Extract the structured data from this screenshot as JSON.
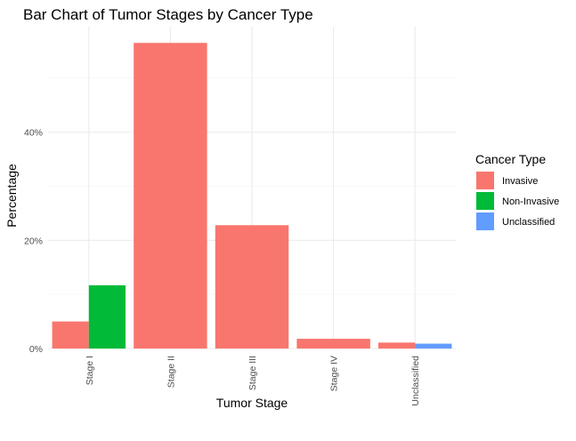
{
  "chart_data": {
    "type": "bar",
    "title": "Bar Chart of Tumor Stages by Cancer Type",
    "xlabel": "Tumor Stage",
    "ylabel": "Percentage",
    "categories": [
      "Stage I",
      "Stage II",
      "Stage III",
      "Stage IV",
      "Unclassified"
    ],
    "series": [
      {
        "name": "Invasive",
        "color": "#F8766D",
        "values": [
          5.0,
          56.5,
          22.8,
          1.8,
          1.1
        ]
      },
      {
        "name": "Non-Invasive",
        "color": "#00BA38",
        "values": [
          11.7,
          null,
          null,
          null,
          null
        ]
      },
      {
        "name": "Unclassified",
        "color": "#619CFF",
        "values": [
          null,
          null,
          null,
          null,
          0.9
        ]
      }
    ],
    "yticks": [
      0,
      20,
      40
    ],
    "ytick_labels": [
      "0%",
      "20%",
      "40%"
    ],
    "ylim": [
      0,
      59.5
    ],
    "grid": true,
    "legend": {
      "title": "Cancer Type",
      "position": "right"
    }
  }
}
